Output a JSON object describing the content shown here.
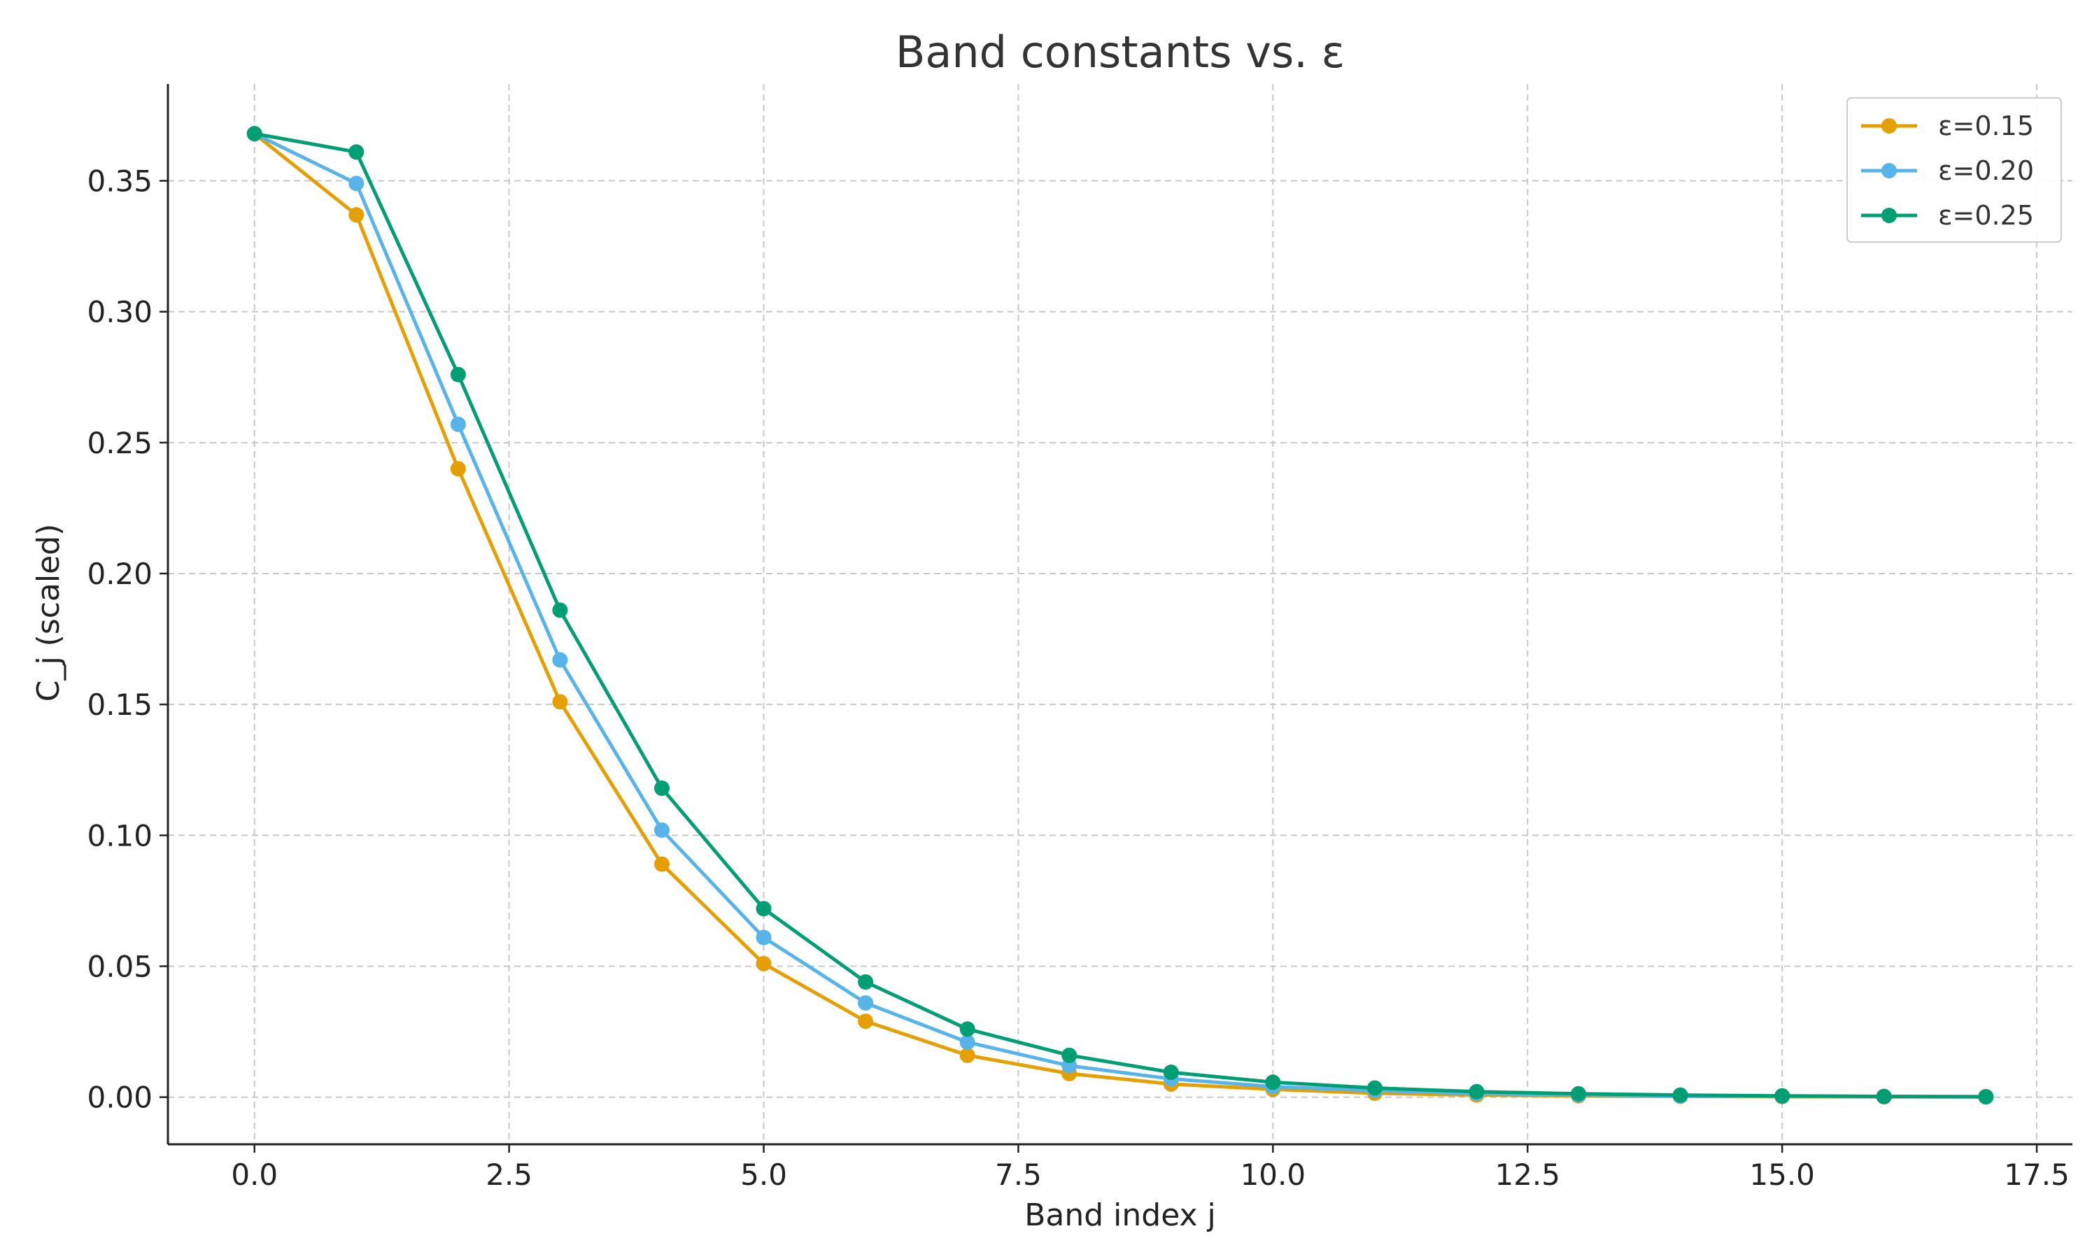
{
  "chart_data": {
    "type": "line",
    "title": "Band constants vs. ε",
    "xlabel": "Band index j",
    "ylabel": "C_j (scaled)",
    "xlim": [
      -0.85,
      17.85
    ],
    "ylim": [
      -0.018,
      0.387
    ],
    "xticks": [
      0.0,
      2.5,
      5.0,
      7.5,
      10.0,
      12.5,
      15.0,
      17.5
    ],
    "xtick_labels": [
      "0.0",
      "2.5",
      "5.0",
      "7.5",
      "10.0",
      "12.5",
      "15.0",
      "17.5"
    ],
    "yticks": [
      0.0,
      0.05,
      0.1,
      0.15,
      0.2,
      0.25,
      0.3,
      0.35
    ],
    "ytick_labels": [
      "0.00",
      "0.05",
      "0.10",
      "0.15",
      "0.20",
      "0.25",
      "0.30",
      "0.35"
    ],
    "grid": true,
    "legend_position": "top-right",
    "x": [
      0,
      1,
      2,
      3,
      4,
      5,
      6,
      7,
      8,
      9,
      10,
      11,
      12,
      13,
      14,
      15,
      16,
      17
    ],
    "series": [
      {
        "name": "ε=0.15",
        "color": "#E69F00",
        "values": [
          0.368,
          0.337,
          0.24,
          0.151,
          0.089,
          0.051,
          0.029,
          0.016,
          0.009,
          0.005,
          0.003,
          0.0015,
          0.0008,
          0.0005,
          0.0003,
          0.0002,
          0.0001,
          0.0001
        ]
      },
      {
        "name": "ε=0.20",
        "color": "#56B4E9",
        "values": [
          0.368,
          0.349,
          0.257,
          0.167,
          0.102,
          0.061,
          0.036,
          0.021,
          0.012,
          0.007,
          0.004,
          0.0025,
          0.0014,
          0.0008,
          0.0005,
          0.0003,
          0.0002,
          0.0001
        ]
      },
      {
        "name": "ε=0.25",
        "color": "#009E73",
        "values": [
          0.368,
          0.361,
          0.276,
          0.186,
          0.118,
          0.072,
          0.044,
          0.026,
          0.016,
          0.0095,
          0.0057,
          0.0035,
          0.0021,
          0.0013,
          0.0008,
          0.0005,
          0.0003,
          0.0002
        ]
      }
    ]
  }
}
